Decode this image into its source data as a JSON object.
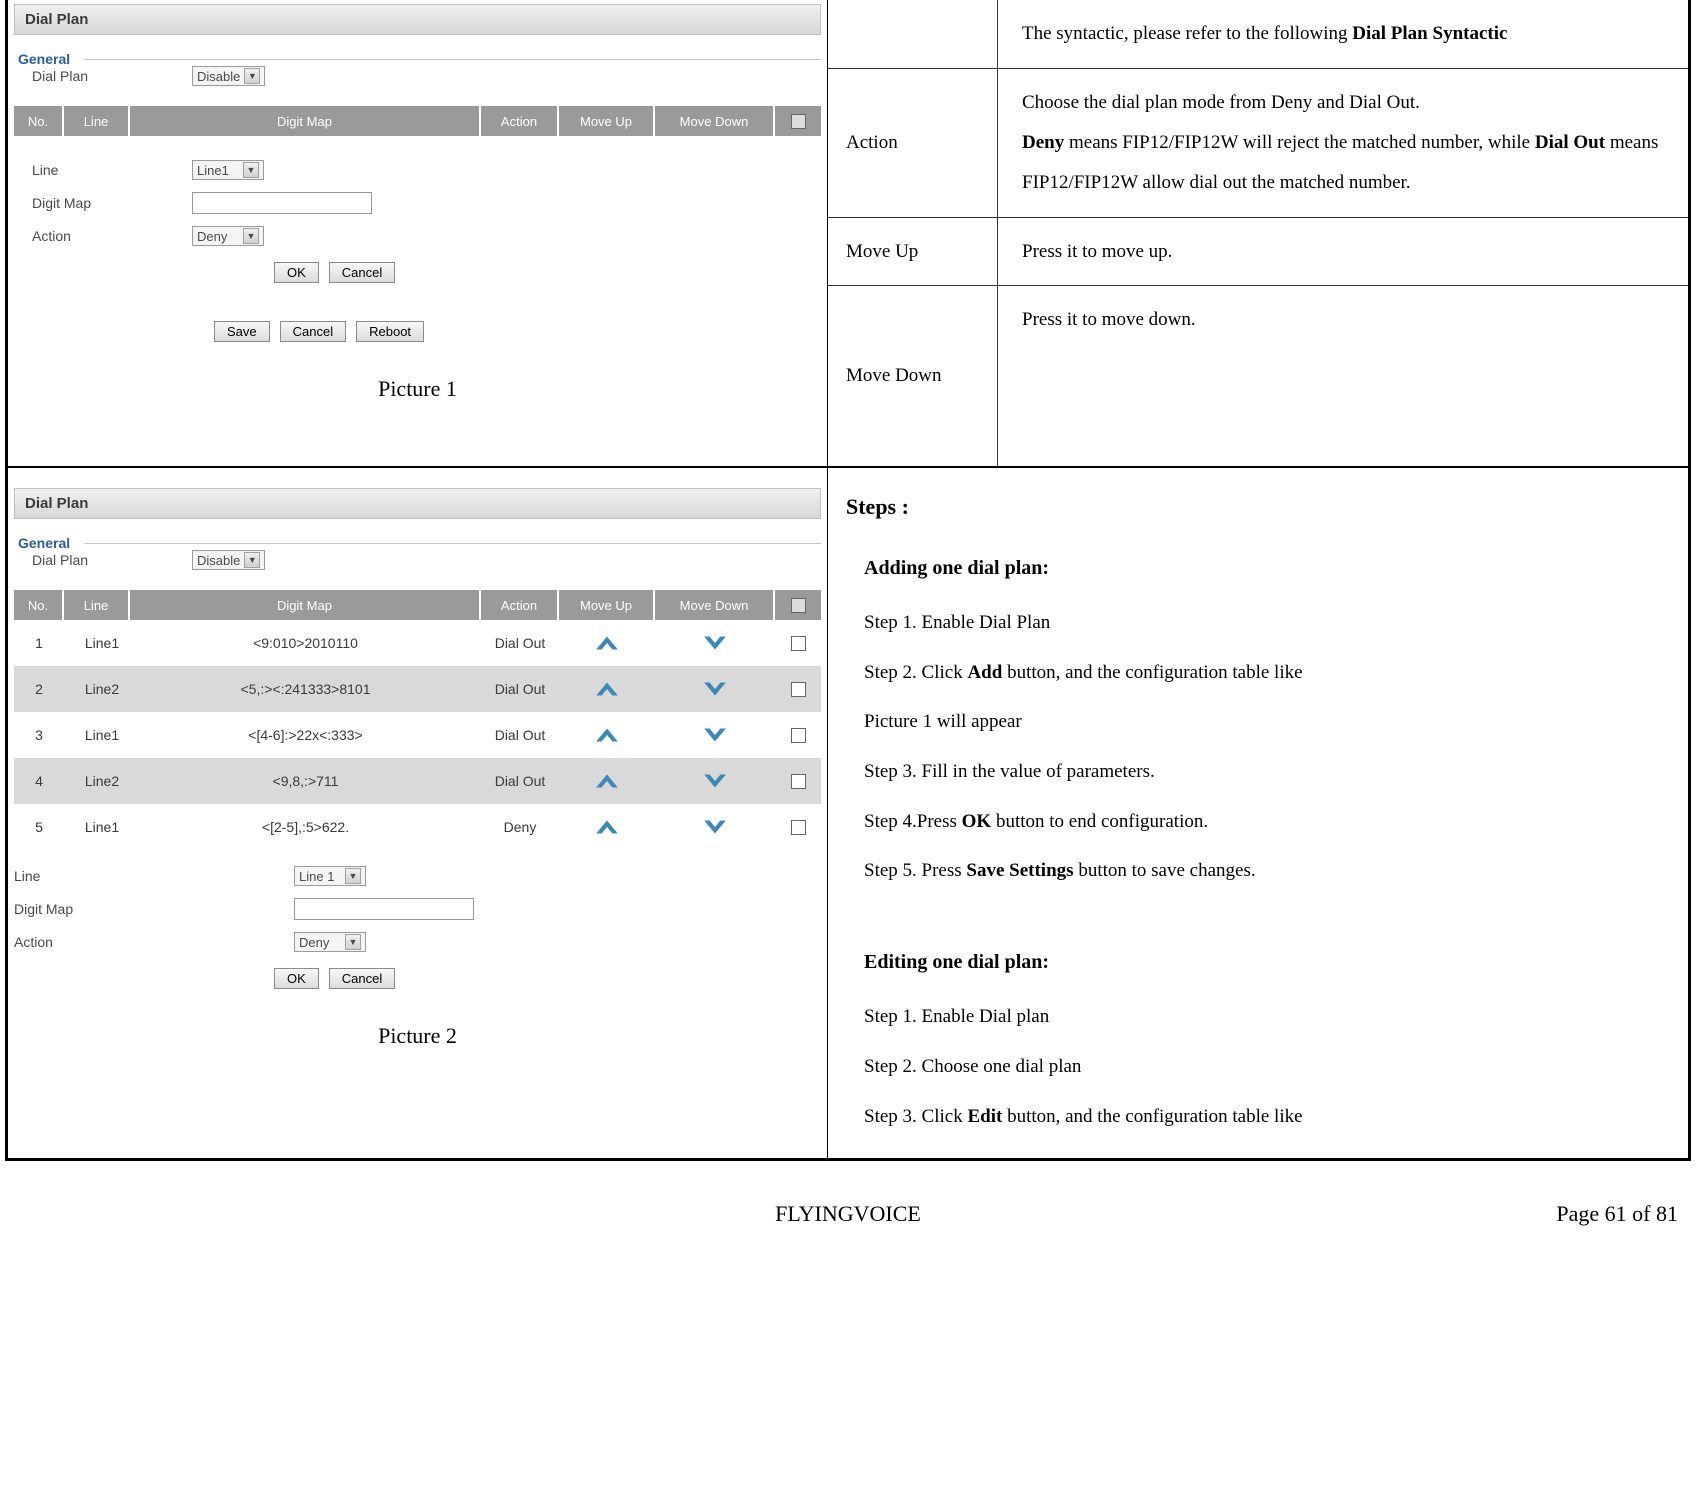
{
  "picture1": {
    "tab_title": "Dial Plan",
    "fieldset": "General",
    "dialplan_label": "Dial Plan",
    "dialplan_value": "Disable",
    "line_label": "Line",
    "line_value": "Line1",
    "digitmap_label": "Digit Map",
    "action_label": "Action",
    "action_value": "Deny",
    "ok": "OK",
    "cancel": "Cancel",
    "save": "Save",
    "reboot": "Reboot",
    "caption": "Picture 1",
    "header_cols": {
      "no": "No.",
      "line": "Line",
      "digitmap": "Digit Map",
      "action": "Action",
      "moveup": "Move Up",
      "movedown": "Move Down"
    }
  },
  "picture2": {
    "tab_title": "Dial Plan",
    "fieldset": "General",
    "dialplan_label": "Dial Plan",
    "dialplan_value": "Disable",
    "header_cols": {
      "no": "No.",
      "line": "Line",
      "digitmap": "Digit Map",
      "action": "Action",
      "moveup": "Move Up",
      "movedown": "Move Down"
    },
    "rows": [
      {
        "no": "1",
        "line": "Line1",
        "digitmap": "<9:010>2010110",
        "action": "Dial Out"
      },
      {
        "no": "2",
        "line": "Line2",
        "digitmap": "<5,:><:241333>8101",
        "action": "Dial Out"
      },
      {
        "no": "3",
        "line": "Line1",
        "digitmap": "<[4-6]:>22x<:333>",
        "action": "Dial Out"
      },
      {
        "no": "4",
        "line": "Line2",
        "digitmap": "<9,8,:>711",
        "action": "Dial Out"
      },
      {
        "no": "5",
        "line": "Line1",
        "digitmap": "<[2-5],:5>622.",
        "action": "Deny"
      }
    ],
    "line_label": "Line",
    "line_value": "Line 1",
    "digitmap_label": "Digit Map",
    "action_label": "Action",
    "action_value": "Deny",
    "ok": "OK",
    "cancel": "Cancel",
    "caption": "Picture 2"
  },
  "desc": {
    "row0_text_a": "The syntactic, please refer to the following ",
    "row0_text_b": "Dial Plan Syntactic",
    "action_label": "Action",
    "action_text_a": "Choose the dial plan mode from Deny and Dial Out.",
    "action_text_b": "Deny",
    "action_text_c": " means FIP12/FIP12W will reject the matched number, while ",
    "action_text_d": "Dial Out",
    "action_text_e": " means FIP12/FIP12W allow dial out the matched number.",
    "moveup_label": "Move Up",
    "moveup_text": "Press it to move up.",
    "movedown_label": "Move Down",
    "movedown_text": "Press it to move down."
  },
  "steps": {
    "title": "Steps :",
    "add_title": "Adding one dial plan:",
    "add_s1": "Step 1. Enable Dial Plan",
    "add_s2_a": "Step 2. Click ",
    "add_s2_b": "Add",
    "add_s2_c": " button, and the configuration table like",
    "add_s2_d": "Picture 1 will appear",
    "add_s3": "Step 3. Fill in the value of parameters.",
    "add_s4_a": "Step 4.Press ",
    "add_s4_b": "OK",
    "add_s4_c": " button to end configuration.",
    "add_s5_a": "Step 5. Press ",
    "add_s5_b": "Save Settings",
    "add_s5_c": " button to save changes.",
    "edit_title": "Editing one dial plan:",
    "edit_s1": "Step 1. Enable Dial plan",
    "edit_s2": "Step 2. Choose one dial plan",
    "edit_s3_a": "Step 3. Click ",
    "edit_s3_b": "Edit",
    "edit_s3_c": " button, and the configuration table like"
  },
  "footer": {
    "brand": "FLYINGVOICE",
    "page": "Page  61  of  81"
  },
  "colors": {
    "headerGrey": "#9a9a9a",
    "rowAlt": "#d9d9d9",
    "blueLink": "#2a5da8",
    "arrowBlue": "#3b89b6"
  }
}
